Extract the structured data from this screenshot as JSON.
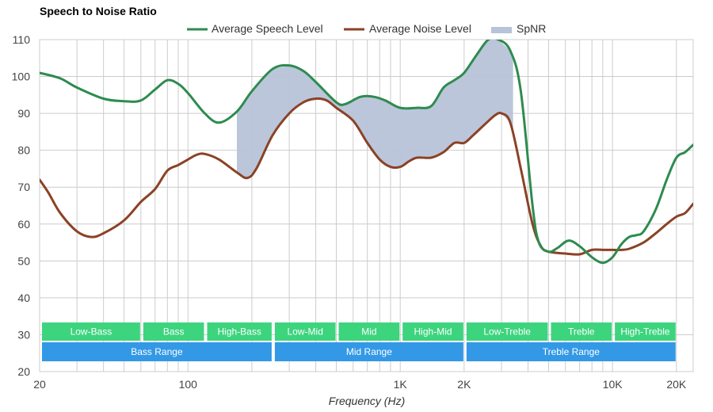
{
  "chart_data": {
    "type": "line",
    "title": "Speech to Noise Ratio",
    "xlabel": "Frequency (Hz)",
    "ylabel": "",
    "x_scale": "log",
    "xlim": [
      20,
      24000
    ],
    "ylim": [
      20,
      110
    ],
    "grid": true,
    "legend_position": "top-center",
    "x_ticks": [
      {
        "value": 20,
        "label": "20"
      },
      {
        "value": 100,
        "label": "100"
      },
      {
        "value": 1000,
        "label": "1K"
      },
      {
        "value": 2000,
        "label": "2K"
      },
      {
        "value": 10000,
        "label": "10K"
      },
      {
        "value": 20000,
        "label": "20K"
      }
    ],
    "y_ticks": [
      20,
      30,
      40,
      50,
      60,
      70,
      80,
      90,
      100,
      110
    ],
    "colors": {
      "speech": "#2e8b4f",
      "noise": "#8b4225",
      "spnr": "#b7c3d9",
      "band_green": "#3dd47e",
      "band_blue": "#3399e6",
      "grid": "#cccccc"
    },
    "legend": [
      {
        "key": "speech",
        "label": "Average Speech Level"
      },
      {
        "key": "noise",
        "label": "Average Noise Level"
      },
      {
        "key": "spnr",
        "label": "SpNR"
      }
    ],
    "series": [
      {
        "name": "Average Speech Level",
        "key": "speech",
        "points": [
          [
            20,
            101
          ],
          [
            25,
            99.5
          ],
          [
            30,
            97
          ],
          [
            40,
            94
          ],
          [
            50,
            93.3
          ],
          [
            60,
            93.5
          ],
          [
            70,
            96.5
          ],
          [
            80,
            99
          ],
          [
            90,
            98
          ],
          [
            100,
            95.5
          ],
          [
            120,
            90
          ],
          [
            140,
            87.5
          ],
          [
            170,
            90.5
          ],
          [
            200,
            96
          ],
          [
            250,
            102
          ],
          [
            300,
            103
          ],
          [
            350,
            101.5
          ],
          [
            400,
            98.5
          ],
          [
            500,
            93
          ],
          [
            550,
            92.5
          ],
          [
            650,
            94.5
          ],
          [
            750,
            94.5
          ],
          [
            850,
            93.5
          ],
          [
            1000,
            91.5
          ],
          [
            1200,
            91.5
          ],
          [
            1400,
            92
          ],
          [
            1600,
            97
          ],
          [
            1800,
            99
          ],
          [
            2000,
            101
          ],
          [
            2300,
            106
          ],
          [
            2600,
            110
          ],
          [
            2900,
            110
          ],
          [
            3300,
            107
          ],
          [
            3700,
            96
          ],
          [
            4200,
            65
          ],
          [
            4500,
            55
          ],
          [
            5000,
            52.5
          ],
          [
            5500,
            53.5
          ],
          [
            6200,
            55.5
          ],
          [
            7000,
            54
          ],
          [
            8000,
            51
          ],
          [
            9000,
            49.5
          ],
          [
            10000,
            51
          ],
          [
            11000,
            54.5
          ],
          [
            12000,
            56.5
          ],
          [
            13000,
            57
          ],
          [
            14000,
            58
          ],
          [
            16000,
            64
          ],
          [
            18000,
            72
          ],
          [
            20000,
            78
          ],
          [
            22000,
            79.5
          ],
          [
            24000,
            81.5
          ]
        ]
      },
      {
        "name": "Average Noise Level",
        "key": "noise",
        "points": [
          [
            20,
            72
          ],
          [
            22,
            68.5
          ],
          [
            25,
            63
          ],
          [
            30,
            58
          ],
          [
            35,
            56.5
          ],
          [
            40,
            57.5
          ],
          [
            50,
            61
          ],
          [
            60,
            66
          ],
          [
            70,
            69.5
          ],
          [
            80,
            74.5
          ],
          [
            90,
            76
          ],
          [
            100,
            77.5
          ],
          [
            110,
            78.8
          ],
          [
            120,
            79
          ],
          [
            140,
            77.5
          ],
          [
            170,
            74
          ],
          [
            190,
            72.5
          ],
          [
            210,
            75
          ],
          [
            250,
            84
          ],
          [
            300,
            90
          ],
          [
            350,
            93
          ],
          [
            400,
            94
          ],
          [
            450,
            93.5
          ],
          [
            500,
            91.5
          ],
          [
            600,
            88
          ],
          [
            700,
            82
          ],
          [
            800,
            77.5
          ],
          [
            900,
            75.5
          ],
          [
            1000,
            75.5
          ],
          [
            1100,
            77
          ],
          [
            1200,
            78
          ],
          [
            1400,
            78
          ],
          [
            1600,
            79.5
          ],
          [
            1800,
            82
          ],
          [
            2000,
            82
          ],
          [
            2200,
            84
          ],
          [
            2500,
            87
          ],
          [
            2800,
            89.5
          ],
          [
            3000,
            90
          ],
          [
            3300,
            87.5
          ],
          [
            3700,
            75
          ],
          [
            4200,
            60
          ],
          [
            4600,
            54
          ],
          [
            5000,
            52.5
          ],
          [
            6000,
            52
          ],
          [
            7000,
            51.8
          ],
          [
            8000,
            53
          ],
          [
            9000,
            53
          ],
          [
            10000,
            53
          ],
          [
            11000,
            53
          ],
          [
            12000,
            53.3
          ],
          [
            14000,
            55
          ],
          [
            16000,
            57.5
          ],
          [
            18000,
            60
          ],
          [
            20000,
            62
          ],
          [
            22000,
            63
          ],
          [
            24000,
            65.5
          ]
        ]
      }
    ],
    "spnr_area": {
      "label": "SpNR",
      "x_start": 170,
      "x_end": 3400
    },
    "ranges": [
      {
        "label": "Low-Bass",
        "x_start": 20,
        "x_end": 60,
        "row": 1
      },
      {
        "label": "Bass",
        "x_start": 60,
        "x_end": 120,
        "row": 1
      },
      {
        "label": "High-Bass",
        "x_start": 120,
        "x_end": 250,
        "row": 1
      },
      {
        "label": "Low-Mid",
        "x_start": 250,
        "x_end": 500,
        "row": 1
      },
      {
        "label": "Mid",
        "x_start": 500,
        "x_end": 1000,
        "row": 1
      },
      {
        "label": "High-Mid",
        "x_start": 1000,
        "x_end": 2000,
        "row": 1
      },
      {
        "label": "Low-Treble",
        "x_start": 2000,
        "x_end": 5000,
        "row": 1
      },
      {
        "label": "Treble",
        "x_start": 5000,
        "x_end": 10000,
        "row": 1
      },
      {
        "label": "High-Treble",
        "x_start": 10000,
        "x_end": 20000,
        "row": 1
      },
      {
        "label": "Bass Range",
        "x_start": 20,
        "x_end": 250,
        "row": 2
      },
      {
        "label": "Mid Range",
        "x_start": 250,
        "x_end": 2000,
        "row": 2
      },
      {
        "label": "Treble Range",
        "x_start": 2000,
        "x_end": 20000,
        "row": 2
      }
    ]
  }
}
